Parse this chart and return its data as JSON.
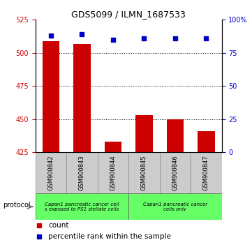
{
  "title": "GDS5099 / ILMN_1687533",
  "samples": [
    "GSM900842",
    "GSM900843",
    "GSM900844",
    "GSM900845",
    "GSM900846",
    "GSM900847"
  ],
  "counts": [
    509,
    507,
    433,
    453,
    450,
    441
  ],
  "percentile_ranks": [
    88,
    89,
    85,
    86,
    86,
    86
  ],
  "ylim_left": [
    425,
    525
  ],
  "ylim_right": [
    0,
    100
  ],
  "yticks_left": [
    425,
    450,
    475,
    500,
    525
  ],
  "yticks_right": [
    0,
    25,
    50,
    75,
    100
  ],
  "ytick_labels_right": [
    "0",
    "25",
    "50",
    "75",
    "100%"
  ],
  "bar_color": "#cc0000",
  "dot_color": "#0000cc",
  "grid_ticks": [
    500,
    475,
    450
  ],
  "group1_label": "Capan1 pancreatic cancer cell\ns exposed to PS1 stellate cells",
  "group2_label": "Capan1 pancreatic cancer\ncells only",
  "group_color": "#66ff66",
  "sample_box_color": "#cccccc",
  "legend_count_label": "count",
  "legend_pct_label": "percentile rank within the sample",
  "legend_count_color": "#cc0000",
  "legend_dot_color": "#0000cc",
  "bar_width": 0.55
}
